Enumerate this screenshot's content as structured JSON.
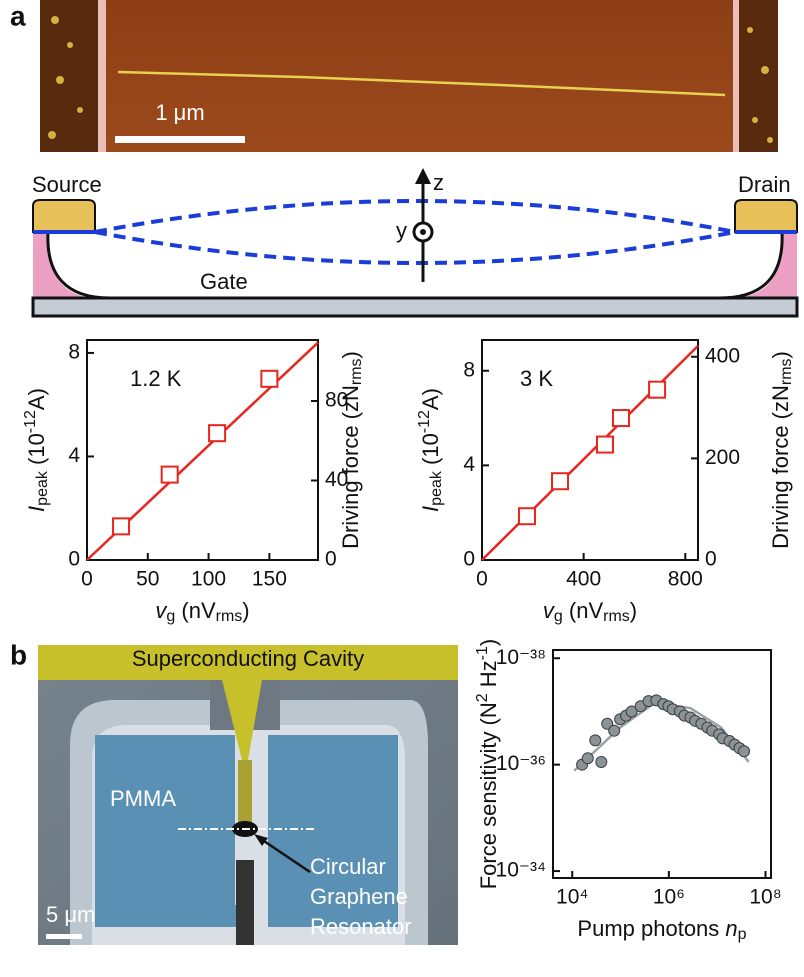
{
  "figure": {
    "panel_a": "a",
    "panel_b": "b",
    "afm_scale": "1 μm",
    "source": "Source",
    "drain": "Drain",
    "gate": "Gate",
    "z_axis": "z",
    "y_axis": "y",
    "cavity": "Superconducting Cavity",
    "pmma": "PMMA",
    "resonator": [
      "Circular",
      "Graphene",
      "Resonator"
    ],
    "sem_scale": "5 μm"
  },
  "chart_data": [
    {
      "type": "scatter",
      "annotation": "1.2 K",
      "xlabel": [
        "v",
        "g",
        " (nV",
        "rms",
        ")"
      ],
      "ylabel": [
        "I",
        "peak",
        " (10",
        "-12",
        "A)"
      ],
      "y2label": [
        "Driving force (zN",
        "rms",
        ")"
      ],
      "xlim": [
        0,
        190
      ],
      "ylim": [
        0,
        8.5
      ],
      "y2lim": [
        0,
        110.7
      ],
      "xticks": [
        0,
        50,
        100,
        150
      ],
      "yticks": [
        0,
        4,
        8
      ],
      "y2ticks": [
        0,
        40,
        80
      ],
      "series": [
        {
          "style": "marker",
          "marker": "square",
          "color": "#e8251e",
          "x": [
            28,
            68,
            107,
            150
          ],
          "values": [
            1.3,
            3.3,
            4.9,
            7.0
          ]
        },
        {
          "style": "line",
          "color": "#e8251e",
          "x": [
            0,
            190
          ],
          "values": [
            0,
            8.4
          ]
        }
      ]
    },
    {
      "type": "scatter",
      "annotation": "3 K",
      "xlabel": [
        "v",
        "g",
        " (nV",
        "rms",
        ")"
      ],
      "ylabel": [
        "I",
        "peak",
        " (10",
        "-12",
        "A)"
      ],
      "y2label": [
        "Driving force (zN",
        "rms",
        ")"
      ],
      "xlim": [
        0,
        850
      ],
      "ylim": [
        0,
        9.3
      ],
      "y2lim": [
        0,
        433
      ],
      "xticks": [
        0,
        400,
        800
      ],
      "yticks": [
        0,
        4,
        8
      ],
      "y2ticks": [
        0,
        200,
        400
      ],
      "series": [
        {
          "style": "marker",
          "marker": "square",
          "color": "#e8251e",
          "x": [
            177,
            307,
            484,
            547,
            689
          ],
          "values": [
            1.85,
            3.33,
            4.88,
            6.0,
            7.2
          ]
        },
        {
          "style": "line",
          "color": "#e8251e",
          "x": [
            0,
            850
          ],
          "values": [
            0,
            9.05
          ]
        }
      ]
    },
    {
      "type": "scatter",
      "xscale": "log",
      "yscale": "log",
      "xlabel": [
        "Pump photons ",
        "n",
        "p"
      ],
      "ylabel": [
        "Force sensitivity (N",
        "2",
        " Hz",
        "-1",
        ")"
      ],
      "xlim": [
        4000,
        130000000
      ],
      "ylim": [
        1.35e-34,
        7e-39
      ],
      "xticks": [
        {
          "value": 10000,
          "label": "10⁴"
        },
        {
          "value": 1000000,
          "label": "10⁶"
        },
        {
          "value": 100000000,
          "label": "10⁸"
        }
      ],
      "yticks": [
        {
          "value": 1e-34,
          "label": "10⁻³⁴"
        },
        {
          "value": 1e-36,
          "label": "10⁻³⁶"
        },
        {
          "value": 1e-38,
          "label": "10⁻³⁸"
        }
      ],
      "series": [
        {
          "style": "marker",
          "marker": "circle",
          "color": "#8c9396",
          "x": [
            16000,
            21000,
            30000,
            40000,
            53000,
            74000,
            98000,
            130000,
            170000,
            260000,
            380000,
            550000,
            770000,
            980000,
            1200000,
            1700000,
            2100000,
            2800000,
            3500000,
            4700000,
            6300000,
            7900000,
            11000000,
            13000000,
            18000000,
            23000000,
            29000000,
            36000000
          ],
          "values": [
            1e-36,
            7.6e-37,
            3.5e-37,
            8.9e-37,
            1.7e-37,
            2.3e-37,
            1.4e-37,
            1.2e-37,
            1e-37,
            8e-38,
            6.4e-38,
            6.2e-38,
            7.3e-38,
            8e-38,
            9.1e-38,
            1e-37,
            1.2e-37,
            1.3e-37,
            1.5e-37,
            1.7e-37,
            2e-37,
            2.3e-37,
            2.7e-37,
            3.2e-37,
            3.6e-37,
            4.2e-37,
            4.9e-37,
            5.6e-37
          ]
        },
        {
          "style": "line",
          "color": "#9aa3a8",
          "x": [
            11000,
            98000,
            520000,
            2800000,
            12000000,
            45000000
          ],
          "values": [
            1.3e-36,
            2e-37,
            6.8e-38,
            8.7e-38,
            2e-37,
            8.9e-37
          ]
        }
      ]
    }
  ]
}
